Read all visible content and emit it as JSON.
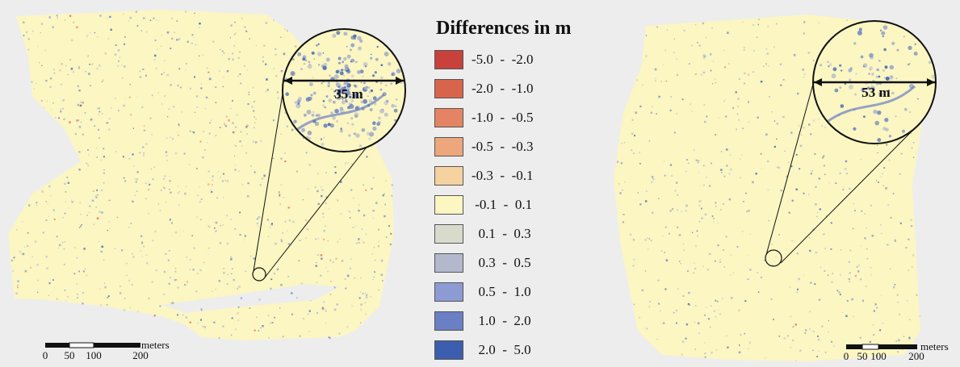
{
  "legend": {
    "title": "Differences in m",
    "items": [
      {
        "label": "-5.0  -  -2.0",
        "color": "#c8413a"
      },
      {
        "label": "-2.0  -  -1.0",
        "color": "#d9644c"
      },
      {
        "label": "-1.0  -  -0.5",
        "color": "#e58464"
      },
      {
        "label": "-0.5  -  -0.3",
        "color": "#eca77c"
      },
      {
        "label": "-0.3  -  -0.1",
        "color": "#f6d2a0"
      },
      {
        "label": " -0.1  -  0.1",
        "color": "#fbf6c2"
      },
      {
        "label": "  0.1  -  0.3",
        "color": "#d8dbcb"
      },
      {
        "label": "  0.3  -  0.5",
        "color": "#b3b8cc"
      },
      {
        "label": "  0.5  -  1.0",
        "color": "#8c9bd3"
      },
      {
        "label": "  1.0  -  2.0",
        "color": "#6a7fc4"
      },
      {
        "label": "  2.0  -  5.0",
        "color": "#3b5fae"
      }
    ]
  },
  "left_map": {
    "zoom_label": "35 m",
    "scale_unit": "meters",
    "scale_ticks": [
      "0",
      "50",
      "100",
      "200"
    ]
  },
  "right_map": {
    "zoom_label": "53 m",
    "scale_unit": "meters",
    "scale_ticks": [
      "0",
      "50",
      "100",
      "200"
    ]
  }
}
